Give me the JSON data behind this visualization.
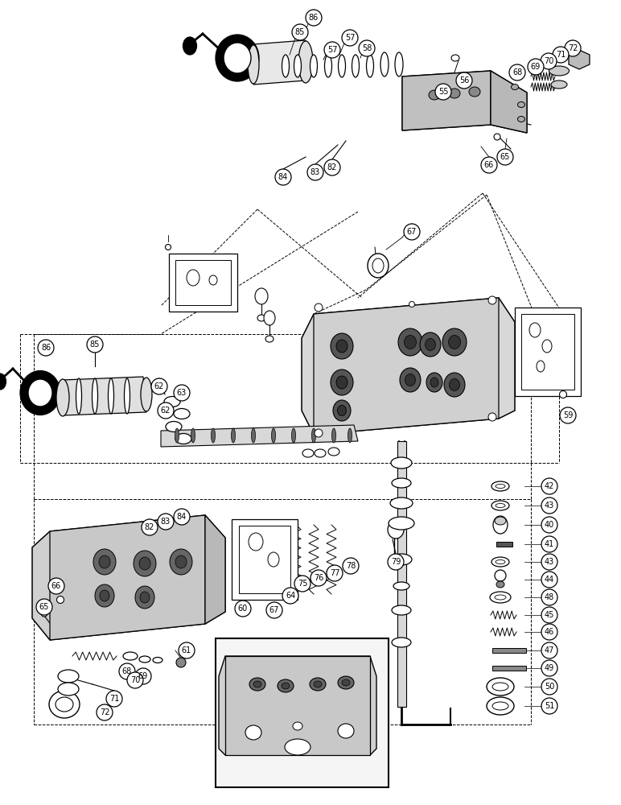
{
  "bg_color": "#ffffff",
  "line_color": "#000000",
  "figsize": [
    7.72,
    10.0
  ],
  "dpi": 100,
  "part_labels_top": [
    [
      390,
      22,
      "86"
    ],
    [
      373,
      40,
      "85"
    ],
    [
      435,
      47,
      "57"
    ],
    [
      456,
      60,
      "58"
    ],
    [
      413,
      62,
      "57"
    ],
    [
      712,
      60,
      "72"
    ],
    [
      697,
      68,
      "71"
    ],
    [
      682,
      76,
      "70"
    ],
    [
      666,
      83,
      "69"
    ],
    [
      643,
      90,
      "68"
    ],
    [
      577,
      100,
      "56"
    ],
    [
      551,
      114,
      "55"
    ],
    [
      628,
      195,
      "65"
    ],
    [
      608,
      205,
      "66"
    ],
    [
      512,
      288,
      "67"
    ],
    [
      413,
      208,
      "82"
    ],
    [
      392,
      214,
      "83"
    ],
    [
      352,
      220,
      "84"
    ]
  ],
  "part_labels_mid": [
    [
      57,
      432,
      "86"
    ],
    [
      118,
      428,
      "85"
    ],
    [
      198,
      480,
      "62"
    ],
    [
      226,
      488,
      "63"
    ],
    [
      206,
      510,
      "62"
    ],
    [
      706,
      516,
      "59"
    ]
  ],
  "part_labels_right": [
    [
      683,
      604,
      "42"
    ],
    [
      683,
      628,
      "43"
    ],
    [
      683,
      652,
      "40"
    ],
    [
      683,
      676,
      "41"
    ],
    [
      683,
      698,
      "43"
    ],
    [
      683,
      720,
      "44"
    ],
    [
      683,
      742,
      "48"
    ],
    [
      683,
      764,
      "45"
    ],
    [
      683,
      785,
      "46"
    ],
    [
      683,
      808,
      "47"
    ],
    [
      683,
      830,
      "49"
    ],
    [
      683,
      853,
      "50"
    ],
    [
      683,
      877,
      "51"
    ]
  ],
  "part_labels_bot": [
    [
      186,
      655,
      "82"
    ],
    [
      206,
      648,
      "83"
    ],
    [
      226,
      642,
      "84"
    ],
    [
      376,
      725,
      "75"
    ],
    [
      396,
      718,
      "76"
    ],
    [
      416,
      712,
      "77"
    ],
    [
      436,
      703,
      "78"
    ],
    [
      492,
      698,
      "79"
    ],
    [
      361,
      740,
      "64"
    ],
    [
      302,
      756,
      "60"
    ],
    [
      341,
      758,
      "67"
    ],
    [
      70,
      728,
      "66"
    ],
    [
      55,
      754,
      "65"
    ],
    [
      158,
      834,
      "68"
    ],
    [
      178,
      840,
      "69"
    ],
    [
      168,
      845,
      "70"
    ],
    [
      232,
      808,
      "61"
    ],
    [
      142,
      868,
      "71"
    ],
    [
      130,
      885,
      "72"
    ]
  ]
}
